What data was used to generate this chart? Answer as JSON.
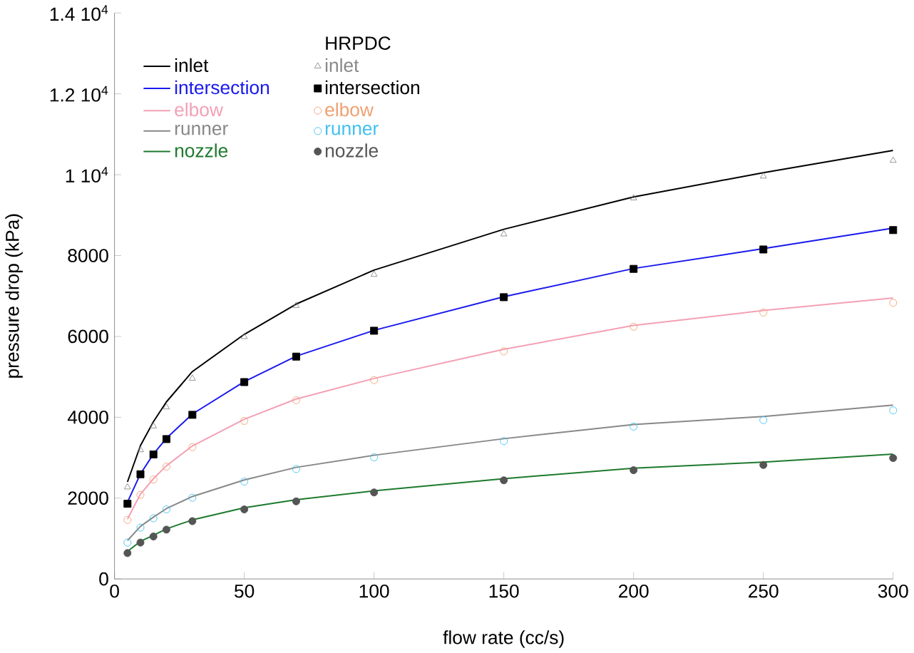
{
  "chart_data": {
    "type": "line",
    "xlabel": "flow rate (cc/s)",
    "ylabel": "pressure drop (kPa)",
    "legend_title": "HRPDC",
    "legend": "top left",
    "grid": false,
    "xlim": [
      0,
      300
    ],
    "xticks": [
      0,
      50,
      100,
      150,
      200,
      250,
      300
    ],
    "ylim": [
      0,
      14000
    ],
    "yticks": [
      0,
      2000,
      4000,
      6000,
      8000,
      {
        "value": 10000,
        "label": "1 10$^{4}$"
      },
      {
        "value": 12000,
        "label": "1.2 10$^{4}$"
      },
      {
        "value": 14000,
        "label": "1.4 10$^{4}$"
      }
    ],
    "x": [
      5,
      10,
      15,
      20,
      30,
      50,
      70,
      100,
      150,
      200,
      250,
      300
    ],
    "series": [
      {
        "name": "inlet",
        "marker": "none",
        "color": "#000000",
        "values": [
          2400,
          3300,
          3890,
          4380,
          5130,
          6050,
          6800,
          7640,
          8650,
          9450,
          10050,
          10600
        ]
      },
      {
        "name": "intersection",
        "marker": "none",
        "color": "#1a1aee",
        "values": [
          1900,
          2600,
          3090,
          3480,
          4080,
          4880,
          5510,
          6150,
          6980,
          7680,
          8170,
          8680
        ]
      },
      {
        "name": "elbow",
        "marker": "none",
        "color": "#f4a0b4",
        "values": [
          1480,
          2100,
          2480,
          2800,
          3290,
          3950,
          4450,
          4960,
          5680,
          6270,
          6640,
          6950
        ]
      },
      {
        "name": "runner",
        "marker": "none",
        "color": "#888888",
        "values": [
          950,
          1300,
          1530,
          1740,
          2040,
          2450,
          2760,
          3060,
          3470,
          3820,
          4020,
          4300
        ]
      },
      {
        "name": "nozzle",
        "marker": "none",
        "color": "#1e7a2e",
        "values": [
          680,
          930,
          1080,
          1240,
          1460,
          1760,
          1960,
          2180,
          2480,
          2740,
          2890,
          3090
        ]
      },
      {
        "name": "inlet",
        "type": "scatter",
        "marker": "triangle",
        "color": "#888888",
        "values": [
          2270,
          3190,
          3780,
          4250,
          4960,
          5990,
          6760,
          7530,
          8530,
          9420,
          9960,
          10350
        ]
      },
      {
        "name": "intersection",
        "type": "scatter",
        "marker": "square",
        "color": "#000000",
        "values": [
          1860,
          2590,
          3080,
          3460,
          4060,
          4870,
          5500,
          6140,
          6970,
          7670,
          8150,
          8630
        ]
      },
      {
        "name": "elbow",
        "type": "scatter",
        "marker": "circle",
        "color": "#f0a070",
        "values": [
          1460,
          2080,
          2460,
          2780,
          3260,
          3910,
          4420,
          4920,
          5630,
          6240,
          6590,
          6830
        ]
      },
      {
        "name": "runner",
        "type": "scatter",
        "marker": "circle",
        "color": "#40c0f0",
        "values": [
          900,
          1270,
          1500,
          1720,
          2010,
          2410,
          2720,
          3010,
          3410,
          3770,
          3930,
          4170
        ]
      },
      {
        "name": "nozzle",
        "type": "scatter",
        "marker": "circle",
        "color": "#555555",
        "values": [
          640,
          900,
          1050,
          1220,
          1430,
          1720,
          1920,
          2140,
          2440,
          2690,
          2820,
          2990
        ]
      }
    ]
  }
}
